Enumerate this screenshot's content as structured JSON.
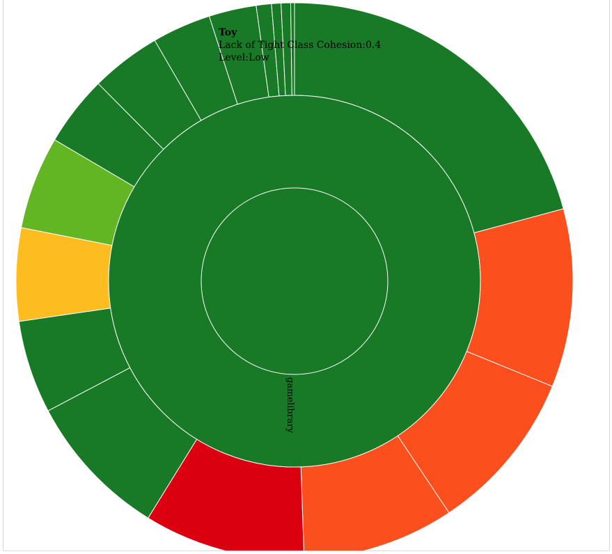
{
  "colors": {
    "low": "#187a26",
    "low_medium": "#63b623",
    "medium": "#fdbd21",
    "high": "#fc4f1e",
    "very_high": "#db0010"
  },
  "chart_data": {
    "type": "sunburst",
    "root_label": "gamelibrary",
    "tooltip": {
      "name": "Toy",
      "metric_line": "Lack of Tight Class Cohesion:0.4",
      "level_line": "Level:Low"
    },
    "outer_ring": [
      {
        "share": 18.9,
        "level": "low"
      },
      {
        "share": 9.4,
        "level": "high"
      },
      {
        "share": 8.6,
        "level": "high"
      },
      {
        "share": 8.0,
        "level": "high"
      },
      {
        "share": 8.5,
        "level": "very_high"
      },
      {
        "share": 7.7,
        "level": "low"
      },
      {
        "share": 4.9,
        "level": "low"
      },
      {
        "share": 4.9,
        "level": "medium"
      },
      {
        "share": 4.9,
        "level": "low_medium"
      },
      {
        "share": 3.7,
        "level": "low"
      },
      {
        "share": 3.7,
        "level": "low"
      },
      {
        "share": 3.1,
        "level": "low"
      },
      {
        "share": 2.5,
        "level": "low"
      },
      {
        "share": 0.8,
        "level": "low"
      },
      {
        "share": 0.5,
        "level": "low"
      },
      {
        "share": 0.5,
        "level": "low"
      },
      {
        "share": 0.2,
        "level": "low"
      }
    ]
  }
}
